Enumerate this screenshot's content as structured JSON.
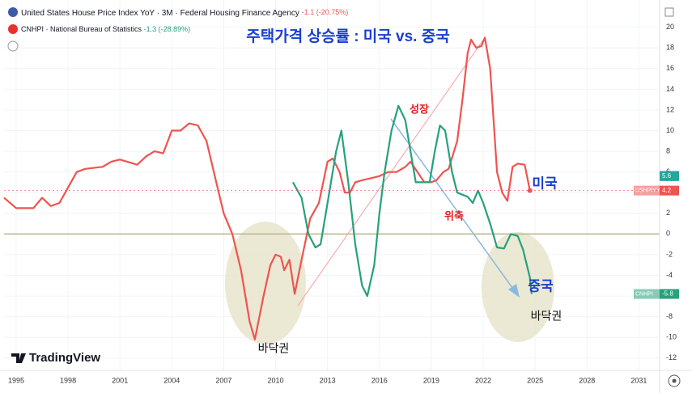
{
  "chart_data": {
    "type": "line",
    "title": "주택가격 상승률 : 미국 vs. 중국",
    "watermark": "TradingView",
    "xlim": [
      1994.3,
      2032.2
    ],
    "xticks": [
      1995,
      1998,
      2001,
      2004,
      2007,
      2010,
      2013,
      2016,
      2019,
      2022,
      2025,
      2028,
      2031
    ],
    "ylim": [
      -12.8,
      20.6
    ],
    "yticks": [
      -12,
      -10,
      -8,
      -6,
      -4,
      -2,
      0,
      2,
      4,
      6,
      8,
      10,
      12,
      14,
      16,
      18,
      20
    ],
    "grid": true,
    "reference_line": 0,
    "series": [
      {
        "name": "United States House Price Index YoY · 3M · Federal Housing Finance Agency",
        "change": "-1.1 (-20.75%)",
        "ticker": "USHPIYY",
        "color": "#f05350",
        "x": [
          1994.3,
          1995,
          1996,
          1996.5,
          1997,
          1997.5,
          1998,
          1998.5,
          1999,
          2000,
          2000.5,
          2001,
          2002,
          2002.5,
          2003,
          2003.5,
          2004,
          2004.5,
          2005,
          2005.5,
          2006,
          2006.5,
          2007,
          2007.5,
          2008,
          2008.5,
          2008.8,
          2009.3,
          2009.7,
          2010,
          2010.3,
          2010.5,
          2010.8,
          2011.1,
          2011.5,
          2012,
          2012.5,
          2013,
          2013.3,
          2013.7,
          2014,
          2014.3,
          2014.6,
          2015,
          2016,
          2016.5,
          2017,
          2017.5,
          2017.8,
          2018.2,
          2018.6,
          2019,
          2019.3,
          2019.7,
          2020,
          2020.5,
          2020.8,
          2021.1,
          2021.3,
          2021.6,
          2021.9,
          2022.1,
          2022.4,
          2022.8,
          2023.1,
          2023.4,
          2023.7,
          2024,
          2024.4,
          2024.7
        ],
        "values": [
          3.5,
          2.5,
          2.5,
          3.5,
          2.7,
          3,
          4.5,
          6,
          6.3,
          6.5,
          7,
          7.2,
          6.7,
          7.5,
          8,
          7.8,
          10,
          10,
          10.7,
          10.5,
          9,
          5.5,
          2,
          0,
          -3.5,
          -8.5,
          -10.2,
          -6,
          -3,
          -2,
          -2.2,
          -3.5,
          -2.5,
          -5.8,
          -2.5,
          1.5,
          3,
          7,
          7.3,
          6,
          4,
          4,
          5,
          5.2,
          5.6,
          6,
          6,
          6.5,
          7,
          6,
          5,
          5,
          5.2,
          6,
          6.3,
          9,
          13,
          17.5,
          18.8,
          18,
          18.2,
          19,
          16,
          6,
          4,
          3.2,
          6.5,
          6.8,
          6.7,
          4.2
        ]
      },
      {
        "name": "CNHPI · National Bureau of Statistics",
        "change": "-1.3 (-28.89%)",
        "ticker": "CNHPI",
        "color": "#26a17b",
        "x": [
          2011,
          2011.5,
          2011.9,
          2012.3,
          2012.6,
          2013,
          2013.5,
          2013.8,
          2014.2,
          2014.6,
          2015,
          2015.3,
          2015.7,
          2016,
          2016.3,
          2016.7,
          2017.1,
          2017.5,
          2017.8,
          2018.1,
          2018.5,
          2018.9,
          2019.2,
          2019.5,
          2019.8,
          2020.2,
          2020.5,
          2020.8,
          2021.1,
          2021.4,
          2021.7,
          2022,
          2022.4,
          2022.8,
          2023.2,
          2023.6,
          2024,
          2024.3,
          2024.7,
          2024.8
        ],
        "values": [
          5,
          3.5,
          0,
          -1.3,
          -1,
          3,
          8,
          10,
          5,
          -1,
          -5,
          -6,
          -3,
          2,
          6,
          10,
          12.4,
          11,
          8,
          5,
          5,
          5,
          8,
          10.5,
          10,
          6,
          4,
          3.8,
          3.6,
          3,
          4.2,
          3,
          1,
          -1.3,
          -1.4,
          0,
          -0.2,
          -1.5,
          -4.2,
          -5.8
        ]
      }
    ],
    "badges": [
      {
        "value": 5.61,
        "color": "#2962ff"
      },
      {
        "value": 5.6,
        "color": "#26a69a"
      }
    ],
    "annotations": [
      "성장",
      "위축",
      "미국",
      "중국",
      "바닥권",
      "바닥권"
    ]
  }
}
